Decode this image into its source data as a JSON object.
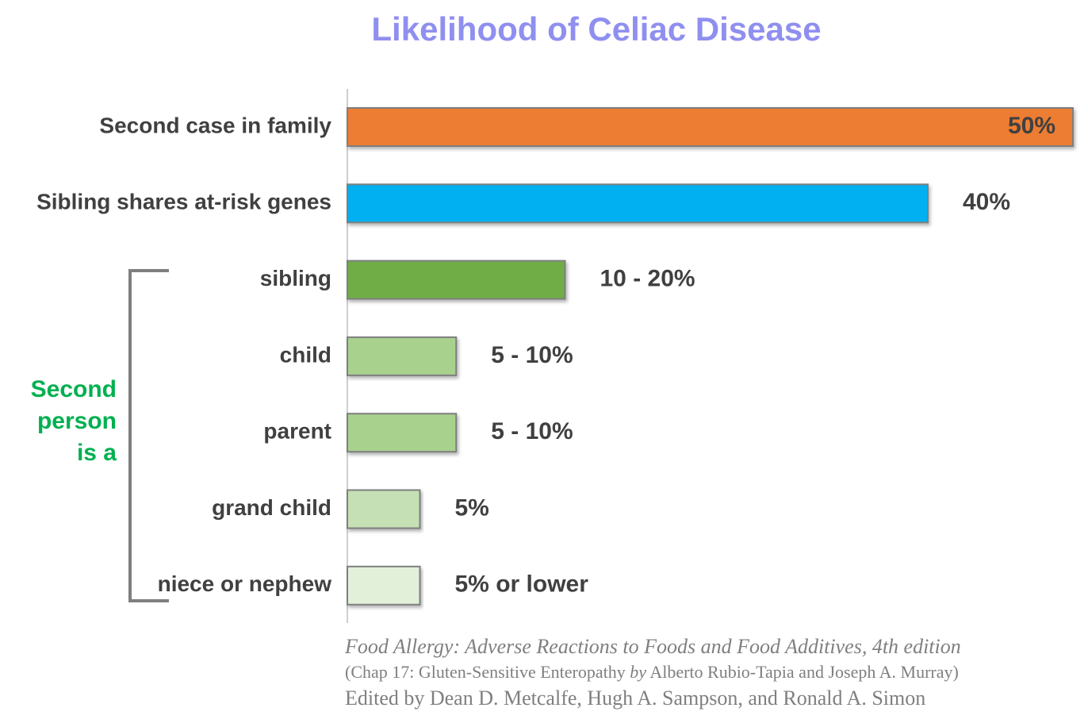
{
  "chart_data": {
    "type": "bar",
    "orientation": "horizontal",
    "title": "Likelihood of Celiac Disease",
    "categories": [
      "Second case in family",
      "Sibling shares at-risk genes",
      "sibling",
      "child",
      "parent",
      "grand child",
      "niece or nephew"
    ],
    "values": [
      50,
      40,
      15,
      7.5,
      7.5,
      5,
      5
    ],
    "value_labels": [
      "50%",
      "40%",
      "10 - 20%",
      "5 - 10%",
      "5 - 10%",
      "5%",
      "5% or lower"
    ],
    "colors": [
      "#ed7d31",
      "#00b0f0",
      "#70ad47",
      "#a9d18e",
      "#a9d18e",
      "#c5e0b4",
      "#e2f0d9"
    ],
    "xlim": [
      0,
      50
    ],
    "annotation": [
      "Second",
      "person",
      "is a"
    ],
    "source": {
      "title": "Food Allergy: Adverse Reactions to Foods and Food Additives, 4th edition",
      "chapter": "(Chap 17: Gluten-Sensitive Enteropathy ",
      "by": "by",
      "authors": " Alberto Rubio-Tapia and Joseph A. Murray)",
      "editors": "Edited by Dean D. Metcalfe, Hugh A. Sampson, and Ronald A. Simon"
    }
  }
}
